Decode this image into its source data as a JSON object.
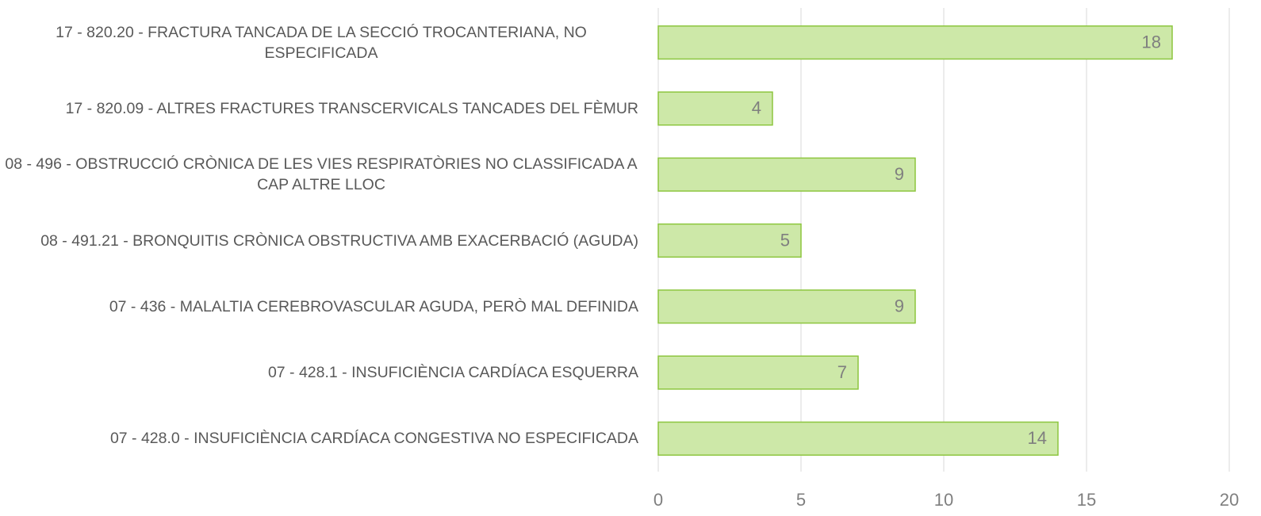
{
  "chart_data": {
    "type": "barh",
    "categories": [
      "17 - 820.20 - FRACTURA TANCADA DE LA SECCIÓ TROCANTERIANA, NO ESPECIFICADA",
      "17 - 820.09 - ALTRES FRACTURES TRANSCERVICALS TANCADES DEL FÈMUR",
      "08 - 496 - OBSTRUCCIÓ CRÒNICA DE LES VIES RESPIRATÒRIES NO CLASSIFICADA A CAP ALTRE LLOC",
      "08 - 491.21 - BRONQUITIS CRÒNICA OBSTRUCTIVA AMB EXACERBACIÓ (AGUDA)",
      "07 - 436 - MALALTIA CEREBROVASCULAR AGUDA, PERÒ MAL DEFINIDA",
      "07 - 428.1 - INSUFICIÈNCIA CARDÍACA ESQUERRA",
      "07 - 428.0 - INSUFICIÈNCIA CARDÍACA CONGESTIVA NO ESPECIFICADA"
    ],
    "values": [
      18,
      4,
      9,
      5,
      9,
      7,
      14
    ],
    "color": "#cde8a8",
    "edge_color": "#8dc63f",
    "xlim": [
      0,
      20
    ],
    "xticks": [
      0,
      5,
      10,
      15,
      20
    ],
    "grid": true
  }
}
